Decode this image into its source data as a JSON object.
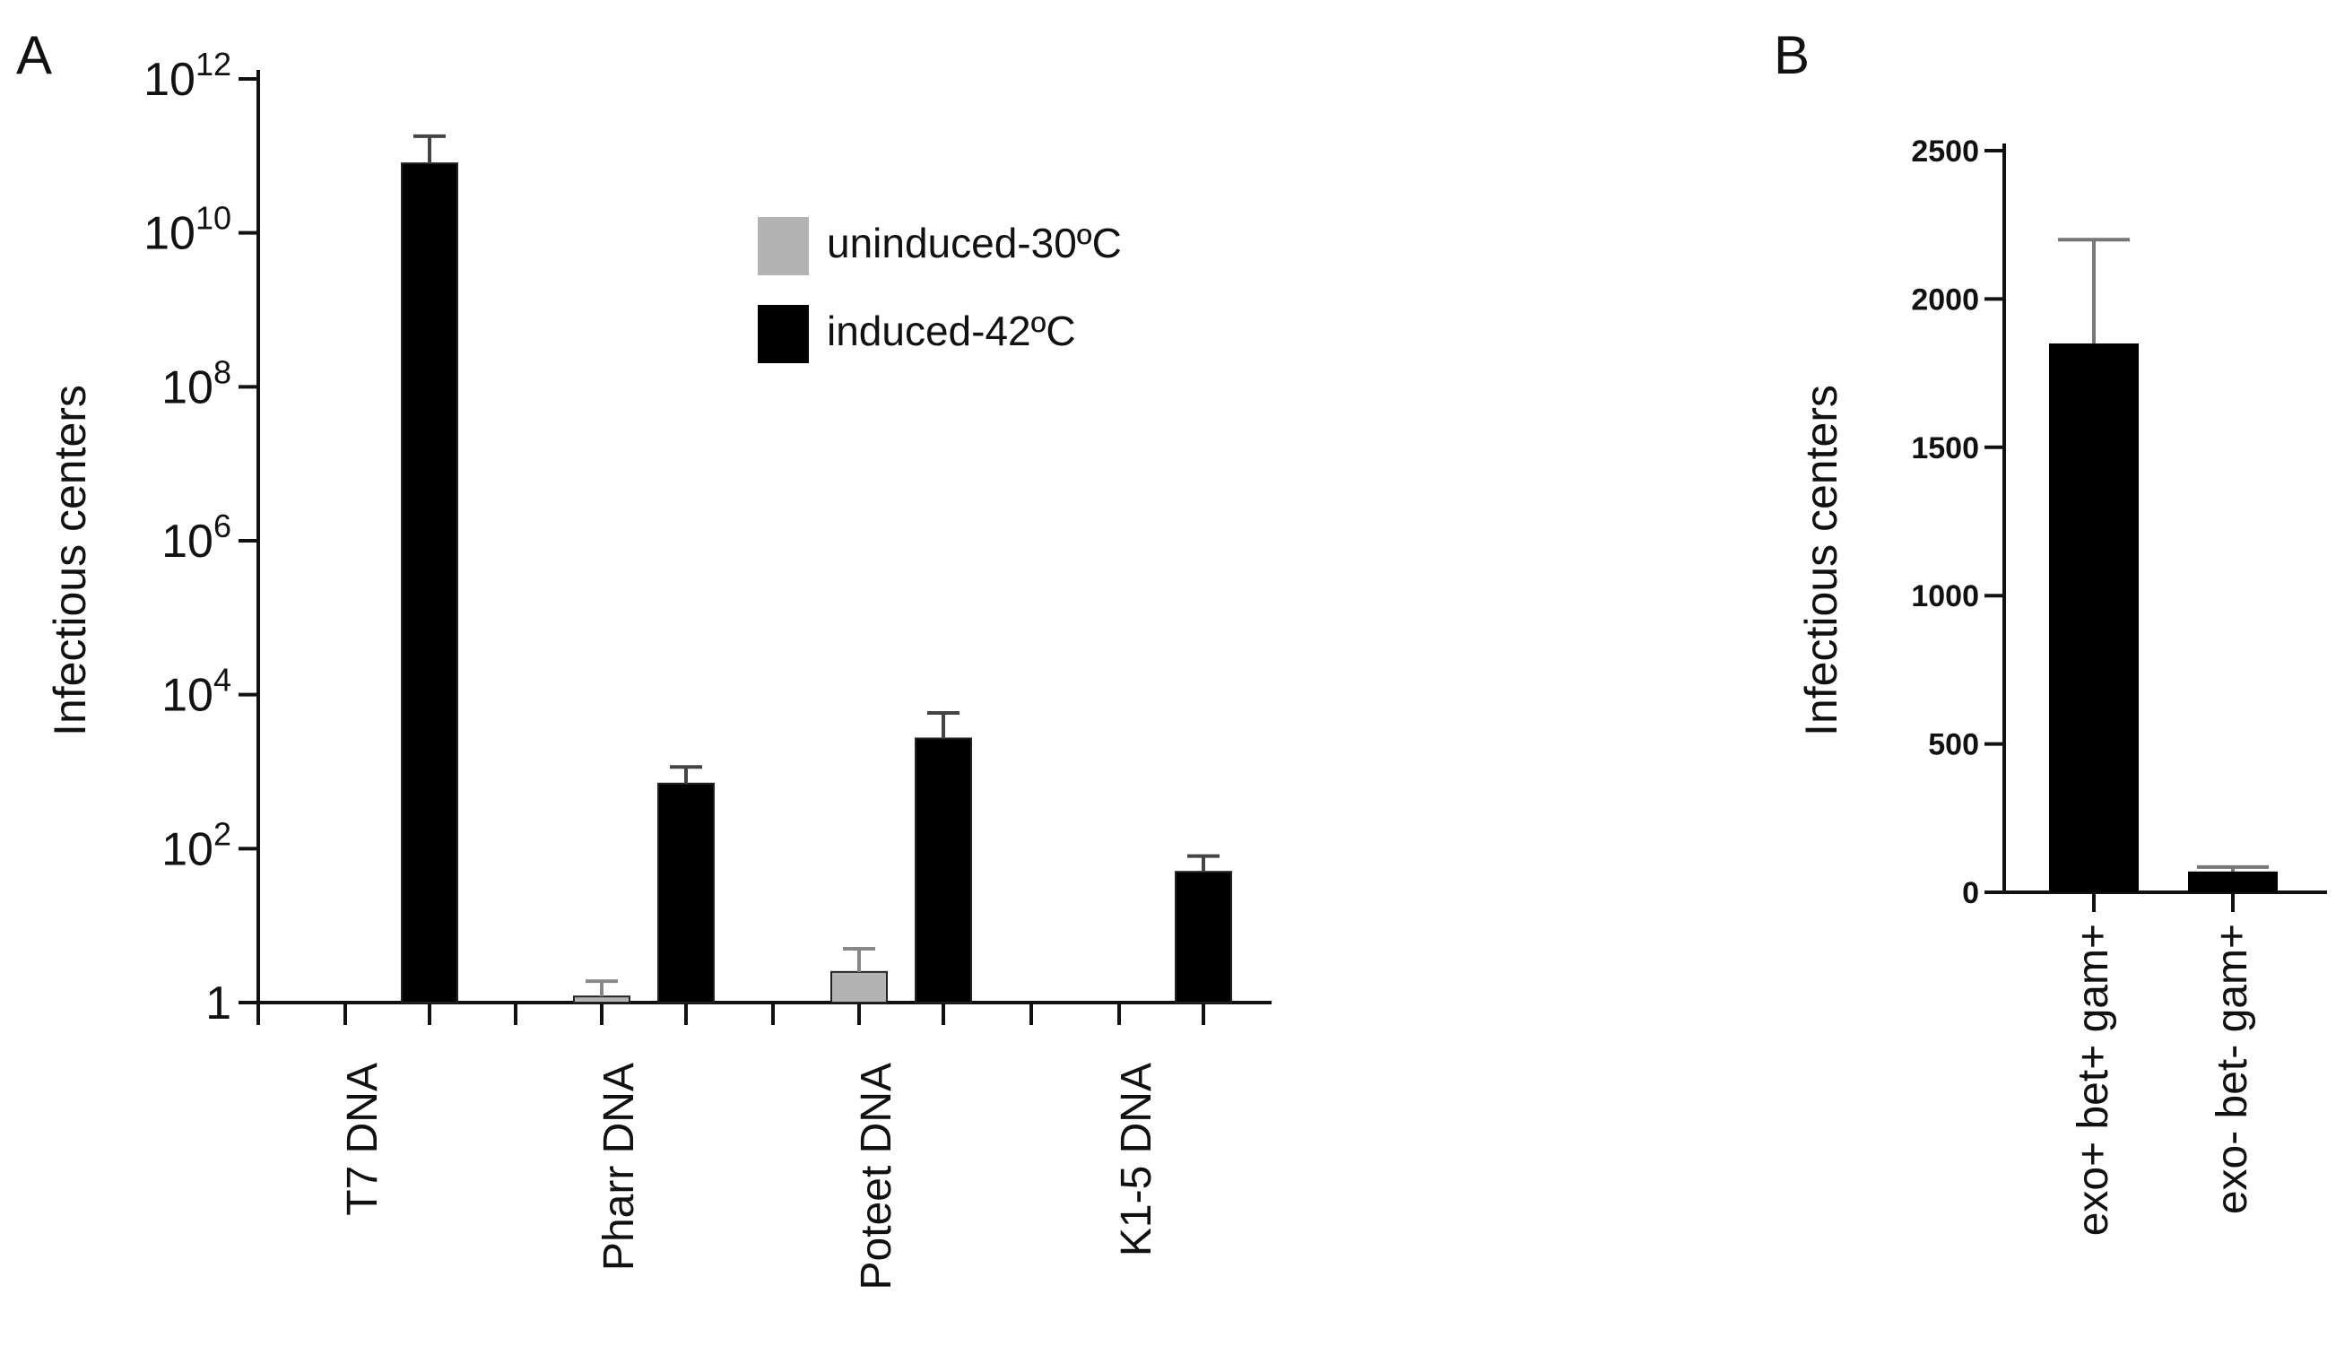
{
  "colors": {
    "uninduced": "#b3b3b3",
    "induced": "#000000",
    "axis": "#111111"
  },
  "chart_data": [
    {
      "panel_label": "A",
      "type": "bar",
      "y_scale": "log",
      "ylabel": "Infectious centers",
      "ylim": [
        1,
        1000000000000
      ],
      "y_ticks": [
        {
          "value": 1,
          "base": "1",
          "exp": ""
        },
        {
          "value": 100,
          "base": "10",
          "exp": "2"
        },
        {
          "value": 10000,
          "base": "10",
          "exp": "4"
        },
        {
          "value": 1000000,
          "base": "10",
          "exp": "6"
        },
        {
          "value": 100000000,
          "base": "10",
          "exp": "8"
        },
        {
          "value": 10000000000,
          "base": "10",
          "exp": "10"
        },
        {
          "value": 1000000000000,
          "base": "10",
          "exp": "12"
        }
      ],
      "categories": [
        "T7 DNA",
        "Pharr DNA",
        "Poteet DNA",
        "K1-5 DNA"
      ],
      "series": [
        {
          "name": "uninduced-30ºC",
          "color": "#b3b3b3",
          "values": [
            null,
            1.2,
            2.5,
            null
          ],
          "errors_upper": [
            null,
            1.9,
            5.0,
            null
          ]
        },
        {
          "name": "induced-42ºC",
          "color": "#000000",
          "values": [
            80000000000,
            700,
            2700,
            50
          ],
          "errors_upper": [
            180000000000,
            1150,
            5800,
            80
          ]
        }
      ],
      "legend": {
        "position": "top-right"
      }
    },
    {
      "panel_label": "B",
      "type": "bar",
      "ylabel": "Infectious centers",
      "ylim": [
        0,
        2500
      ],
      "y_ticks": [
        0,
        500,
        1000,
        1500,
        2000,
        2500
      ],
      "categories": [
        "exo+ bet+ gam+",
        "exo- bet- gam+"
      ],
      "series": [
        {
          "color": "#000000",
          "values": [
            1850,
            70
          ],
          "errors_upper": [
            2200,
            85
          ]
        }
      ]
    }
  ]
}
